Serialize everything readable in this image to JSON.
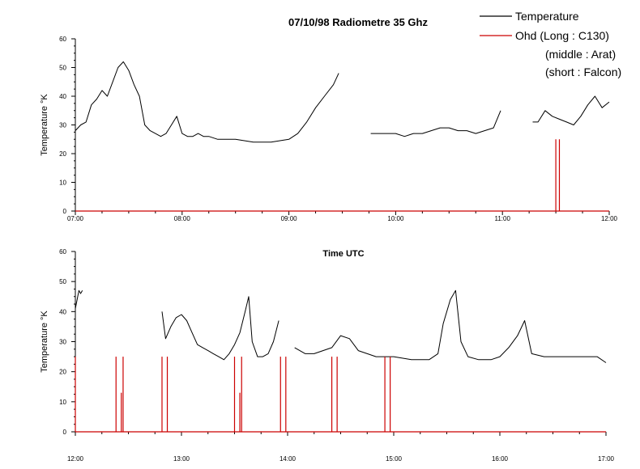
{
  "colors": {
    "temperature": "#000000",
    "ohd": "#cc0000",
    "axis": "#000000",
    "background": "#ffffff"
  },
  "legend": {
    "placement": "top-right",
    "entries": [
      {
        "series": "Temperature",
        "label": "Temperature",
        "color": "#000000"
      },
      {
        "series": "Ohd",
        "label": "Ohd (Long : C130)",
        "color": "#cc0000"
      }
    ],
    "notes": [
      "(middle : Arat)",
      "(short : Falcon)"
    ]
  },
  "chart_data": [
    {
      "type": "line",
      "title": "07/10/98  Radiometre 35 Ghz",
      "xlabel": "",
      "ylabel": "Temperature °K",
      "xlim": [
        "07:00",
        "12:00"
      ],
      "ylim": [
        0,
        60
      ],
      "yticks": [
        0,
        10,
        20,
        30,
        40,
        50,
        60
      ],
      "xticks": [
        "07:00",
        "08:00",
        "09:00",
        "10:00",
        "11:00",
        "12:00"
      ],
      "grid": false,
      "series": [
        {
          "name": "Temperature",
          "segments": [
            {
              "x": [
                "07:00",
                "07:03",
                "07:06",
                "07:09",
                "07:12",
                "07:15",
                "07:18",
                "07:21",
                "07:24",
                "07:27",
                "07:30",
                "07:33",
                "07:36",
                "07:39",
                "07:42",
                "07:45",
                "07:48",
                "07:51",
                "07:54",
                "07:57",
                "08:00",
                "08:03",
                "08:06",
                "08:09",
                "08:12",
                "08:15",
                "08:20",
                "08:25",
                "08:30",
                "08:40",
                "08:50",
                "09:00",
                "09:05",
                "09:10",
                "09:15",
                "09:20",
                "09:25",
                "09:28"
              ],
              "y": [
                28,
                30,
                31,
                37,
                39,
                42,
                40,
                45,
                50,
                52,
                49,
                44,
                40,
                30,
                28,
                27,
                26,
                27,
                30,
                33,
                27,
                26,
                26,
                27,
                26,
                26,
                25,
                25,
                25,
                24,
                24,
                25,
                27,
                31,
                36,
                40,
                44,
                48
              ]
            },
            {
              "x": [
                "09:46",
                "09:50",
                "09:55",
                "10:00",
                "10:05",
                "10:10",
                "10:15",
                "10:20",
                "10:25",
                "10:30",
                "10:35",
                "10:40",
                "10:45",
                "10:50",
                "10:55",
                "10:59"
              ],
              "y": [
                27,
                27,
                27,
                27,
                26,
                27,
                27,
                28,
                29,
                29,
                28,
                28,
                27,
                28,
                29,
                35
              ]
            },
            {
              "x": [
                "11:17",
                "11:20",
                "11:24",
                "11:28",
                "11:32",
                "11:36",
                "11:40",
                "11:44",
                "11:48",
                "11:52",
                "11:56",
                "12:00"
              ],
              "y": [
                31,
                31,
                35,
                33,
                32,
                31,
                30,
                33,
                37,
                40,
                36,
                38
              ]
            }
          ]
        },
        {
          "name": "Ohd",
          "baseline": 0,
          "spikes": [
            {
              "x": "11:30",
              "height": 25
            },
            {
              "x": "11:32",
              "height": 25
            }
          ]
        }
      ]
    },
    {
      "type": "line",
      "title": "",
      "xlabel": "Time UTC",
      "ylabel": "Temperature °K",
      "xlim": [
        "12:00",
        "17:00"
      ],
      "ylim": [
        0,
        60
      ],
      "yticks": [
        0,
        10,
        20,
        30,
        40,
        50,
        60
      ],
      "xticks": [
        "12:00",
        "13:00",
        "14:00",
        "15:00",
        "16:00",
        "17:00"
      ],
      "grid": false,
      "series": [
        {
          "name": "Temperature",
          "segments": [
            {
              "x": [
                "12:00",
                "12:01",
                "12:02",
                "12:03",
                "12:04"
              ],
              "y": [
                41,
                44,
                47,
                46,
                47
              ]
            },
            {
              "x": [
                "12:49",
                "12:51",
                "12:54",
                "12:57",
                "13:00",
                "13:03",
                "13:06",
                "13:09",
                "13:12",
                "13:15",
                "13:18",
                "13:21",
                "13:24",
                "13:27",
                "13:30",
                "13:33",
                "13:36",
                "13:38",
                "13:40",
                "13:43",
                "13:46",
                "13:49",
                "13:52",
                "13:55"
              ],
              "y": [
                40,
                31,
                35,
                38,
                39,
                37,
                33,
                29,
                28,
                27,
                26,
                25,
                24,
                26,
                29,
                33,
                40,
                45,
                30,
                25,
                25,
                26,
                30,
                37
              ]
            },
            {
              "x": [
                "14:04",
                "14:10",
                "14:15",
                "14:20",
                "14:25",
                "14:30",
                "14:35",
                "14:40",
                "14:45",
                "14:50",
                "15:00",
                "15:10",
                "15:20",
                "15:25",
                "15:28",
                "15:32",
                "15:35",
                "15:38",
                "15:42",
                "15:48",
                "15:55",
                "16:00",
                "16:05",
                "16:10",
                "16:14",
                "16:18",
                "16:25",
                "16:35",
                "16:45",
                "16:55",
                "17:00"
              ],
              "y": [
                28,
                26,
                26,
                27,
                28,
                32,
                31,
                27,
                26,
                25,
                25,
                24,
                24,
                26,
                36,
                44,
                47,
                30,
                25,
                24,
                24,
                25,
                28,
                32,
                37,
                26,
                25,
                25,
                25,
                25,
                23
              ]
            }
          ]
        },
        {
          "name": "Ohd",
          "baseline": 0,
          "spikes": [
            {
              "x": "12:00",
              "height": 25
            },
            {
              "x": "12:23",
              "height": 25
            },
            {
              "x": "12:26",
              "height": 13
            },
            {
              "x": "12:27",
              "height": 25
            },
            {
              "x": "12:49",
              "height": 25
            },
            {
              "x": "12:52",
              "height": 25
            },
            {
              "x": "13:30",
              "height": 25
            },
            {
              "x": "13:33",
              "height": 13
            },
            {
              "x": "13:34",
              "height": 25
            },
            {
              "x": "13:56",
              "height": 25
            },
            {
              "x": "13:59",
              "height": 25
            },
            {
              "x": "14:25",
              "height": 25
            },
            {
              "x": "14:28",
              "height": 25
            },
            {
              "x": "14:55",
              "height": 25
            },
            {
              "x": "14:58",
              "height": 25
            }
          ]
        }
      ]
    }
  ]
}
